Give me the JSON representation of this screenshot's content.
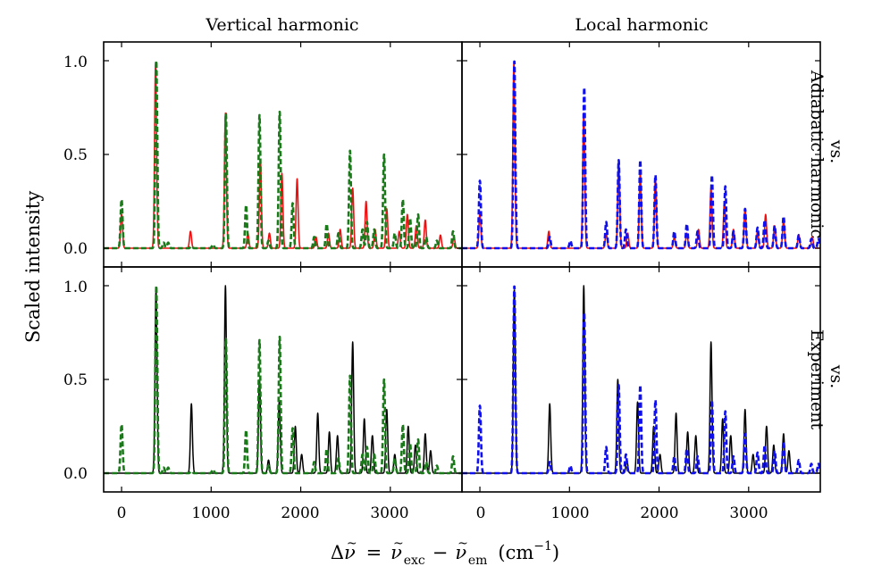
{
  "chart_data": {
    "type": "line",
    "xlabel_parts": {
      "delta": "Δ",
      "nu": "ν",
      "tilde": "~",
      "equals": "=",
      "sub_exc": "exc",
      "minus": "−",
      "sub_em": "em",
      "unit_open": "(cm",
      "unit_exp": "−1",
      "unit_close": ")"
    },
    "ylabel": "Scaled intensity",
    "column_titles": [
      "Vertical harmonic",
      "Local harmonic"
    ],
    "row_titles": [
      [
        "vs.",
        "Adiabatic harmonic"
      ],
      [
        "vs.",
        "Experiment"
      ]
    ],
    "xlim": [
      -200,
      3800
    ],
    "ylim": [
      -0.1,
      1.1
    ],
    "xticks": [
      0,
      1000,
      2000,
      3000
    ],
    "xtick_labels": [
      "0",
      "1000",
      "2000",
      "3000"
    ],
    "yticks": [
      0.0,
      0.5,
      1.0
    ],
    "ytick_labels": [
      "0.0",
      "0.5",
      "1.0"
    ],
    "colors": {
      "vertical": "#1a7a1a",
      "local": "#1010ee",
      "adiabatic": "#ee1010",
      "experiment": "#000000"
    },
    "linewidth_note": "data only",
    "series_peaks": {
      "vertical": [
        [
          0,
          0.26
        ],
        [
          388,
          1.0
        ],
        [
          470,
          0.03
        ],
        [
          520,
          0.03
        ],
        [
          780,
          0.01
        ],
        [
          1020,
          0.02
        ],
        [
          1165,
          0.72
        ],
        [
          1390,
          0.23
        ],
        [
          1540,
          0.71
        ],
        [
          1640,
          0.04
        ],
        [
          1765,
          0.73
        ],
        [
          1910,
          0.24
        ],
        [
          2150,
          0.06
        ],
        [
          2290,
          0.13
        ],
        [
          2420,
          0.08
        ],
        [
          2550,
          0.52
        ],
        [
          2690,
          0.1
        ],
        [
          2740,
          0.14
        ],
        [
          2820,
          0.1
        ],
        [
          2930,
          0.5
        ],
        [
          3050,
          0.08
        ],
        [
          3140,
          0.26
        ],
        [
          3220,
          0.16
        ],
        [
          3310,
          0.18
        ],
        [
          3400,
          0.06
        ],
        [
          3520,
          0.04
        ],
        [
          3700,
          0.09
        ]
      ],
      "adiabatic": [
        [
          0,
          0.18
        ],
        [
          380,
          0.99
        ],
        [
          770,
          0.09
        ],
        [
          1160,
          0.72
        ],
        [
          1410,
          0.08
        ],
        [
          1550,
          0.47
        ],
        [
          1650,
          0.08
        ],
        [
          1790,
          0.4
        ],
        [
          1960,
          0.37
        ],
        [
          2170,
          0.06
        ],
        [
          2310,
          0.08
        ],
        [
          2440,
          0.1
        ],
        [
          2580,
          0.32
        ],
        [
          2730,
          0.25
        ],
        [
          2830,
          0.1
        ],
        [
          2960,
          0.21
        ],
        [
          3100,
          0.09
        ],
        [
          3190,
          0.18
        ],
        [
          3290,
          0.12
        ],
        [
          3390,
          0.15
        ],
        [
          3560,
          0.07
        ],
        [
          3710,
          0.06
        ]
      ],
      "local": [
        [
          0,
          0.36
        ],
        [
          385,
          1.0
        ],
        [
          780,
          0.06
        ],
        [
          1010,
          0.04
        ],
        [
          1165,
          0.86
        ],
        [
          1410,
          0.14
        ],
        [
          1550,
          0.47
        ],
        [
          1630,
          0.1
        ],
        [
          1790,
          0.47
        ],
        [
          1960,
          0.39
        ],
        [
          2170,
          0.09
        ],
        [
          2310,
          0.13
        ],
        [
          2430,
          0.09
        ],
        [
          2590,
          0.39
        ],
        [
          2740,
          0.33
        ],
        [
          2830,
          0.09
        ],
        [
          2960,
          0.21
        ],
        [
          3100,
          0.11
        ],
        [
          3180,
          0.15
        ],
        [
          3290,
          0.12
        ],
        [
          3390,
          0.17
        ],
        [
          3560,
          0.07
        ],
        [
          3700,
          0.05
        ],
        [
          3780,
          0.05
        ]
      ],
      "experiment": [
        [
          385,
          0.98
        ],
        [
          780,
          0.37
        ],
        [
          1160,
          1.0
        ],
        [
          1540,
          0.5
        ],
        [
          1640,
          0.07
        ],
        [
          1760,
          0.38
        ],
        [
          1940,
          0.25
        ],
        [
          2010,
          0.1
        ],
        [
          2190,
          0.32
        ],
        [
          2320,
          0.22
        ],
        [
          2410,
          0.2
        ],
        [
          2580,
          0.7
        ],
        [
          2710,
          0.29
        ],
        [
          2800,
          0.2
        ],
        [
          2960,
          0.34
        ],
        [
          3050,
          0.1
        ],
        [
          3200,
          0.25
        ],
        [
          3280,
          0.15
        ],
        [
          3390,
          0.21
        ],
        [
          3450,
          0.12
        ]
      ]
    }
  }
}
